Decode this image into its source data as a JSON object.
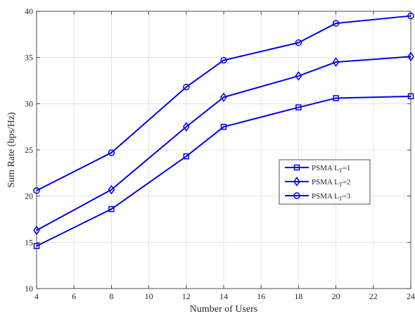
{
  "chart_data": {
    "type": "line",
    "title": "",
    "xlabel": "Number of Users",
    "ylabel": "Sum Rate (bps/Hz)",
    "xlim": [
      4,
      24
    ],
    "ylim": [
      10,
      40
    ],
    "xticks": [
      4,
      6,
      8,
      10,
      12,
      14,
      16,
      18,
      20,
      22,
      24
    ],
    "yticks": [
      10,
      15,
      20,
      25,
      30,
      35,
      40
    ],
    "grid": true,
    "legend_position": "right, mid-lower",
    "line_color": "#0000ee",
    "x": [
      4,
      8,
      12,
      14,
      18,
      20,
      24
    ],
    "series": [
      {
        "name_main": "PSMA L",
        "name_sub": "T",
        "name_tail": "=1",
        "marker": "square",
        "values": [
          14.6,
          18.6,
          24.3,
          27.5,
          29.6,
          30.6,
          30.8
        ]
      },
      {
        "name_main": "PSMA L",
        "name_sub": "T",
        "name_tail": "=2",
        "marker": "diamond",
        "values": [
          16.3,
          20.7,
          27.5,
          30.7,
          33.0,
          34.5,
          35.1
        ]
      },
      {
        "name_main": "PSMA L",
        "name_sub": "T",
        "name_tail": "=3",
        "marker": "circle",
        "values": [
          20.6,
          24.7,
          31.8,
          34.7,
          36.6,
          38.7,
          39.5
        ]
      }
    ]
  }
}
